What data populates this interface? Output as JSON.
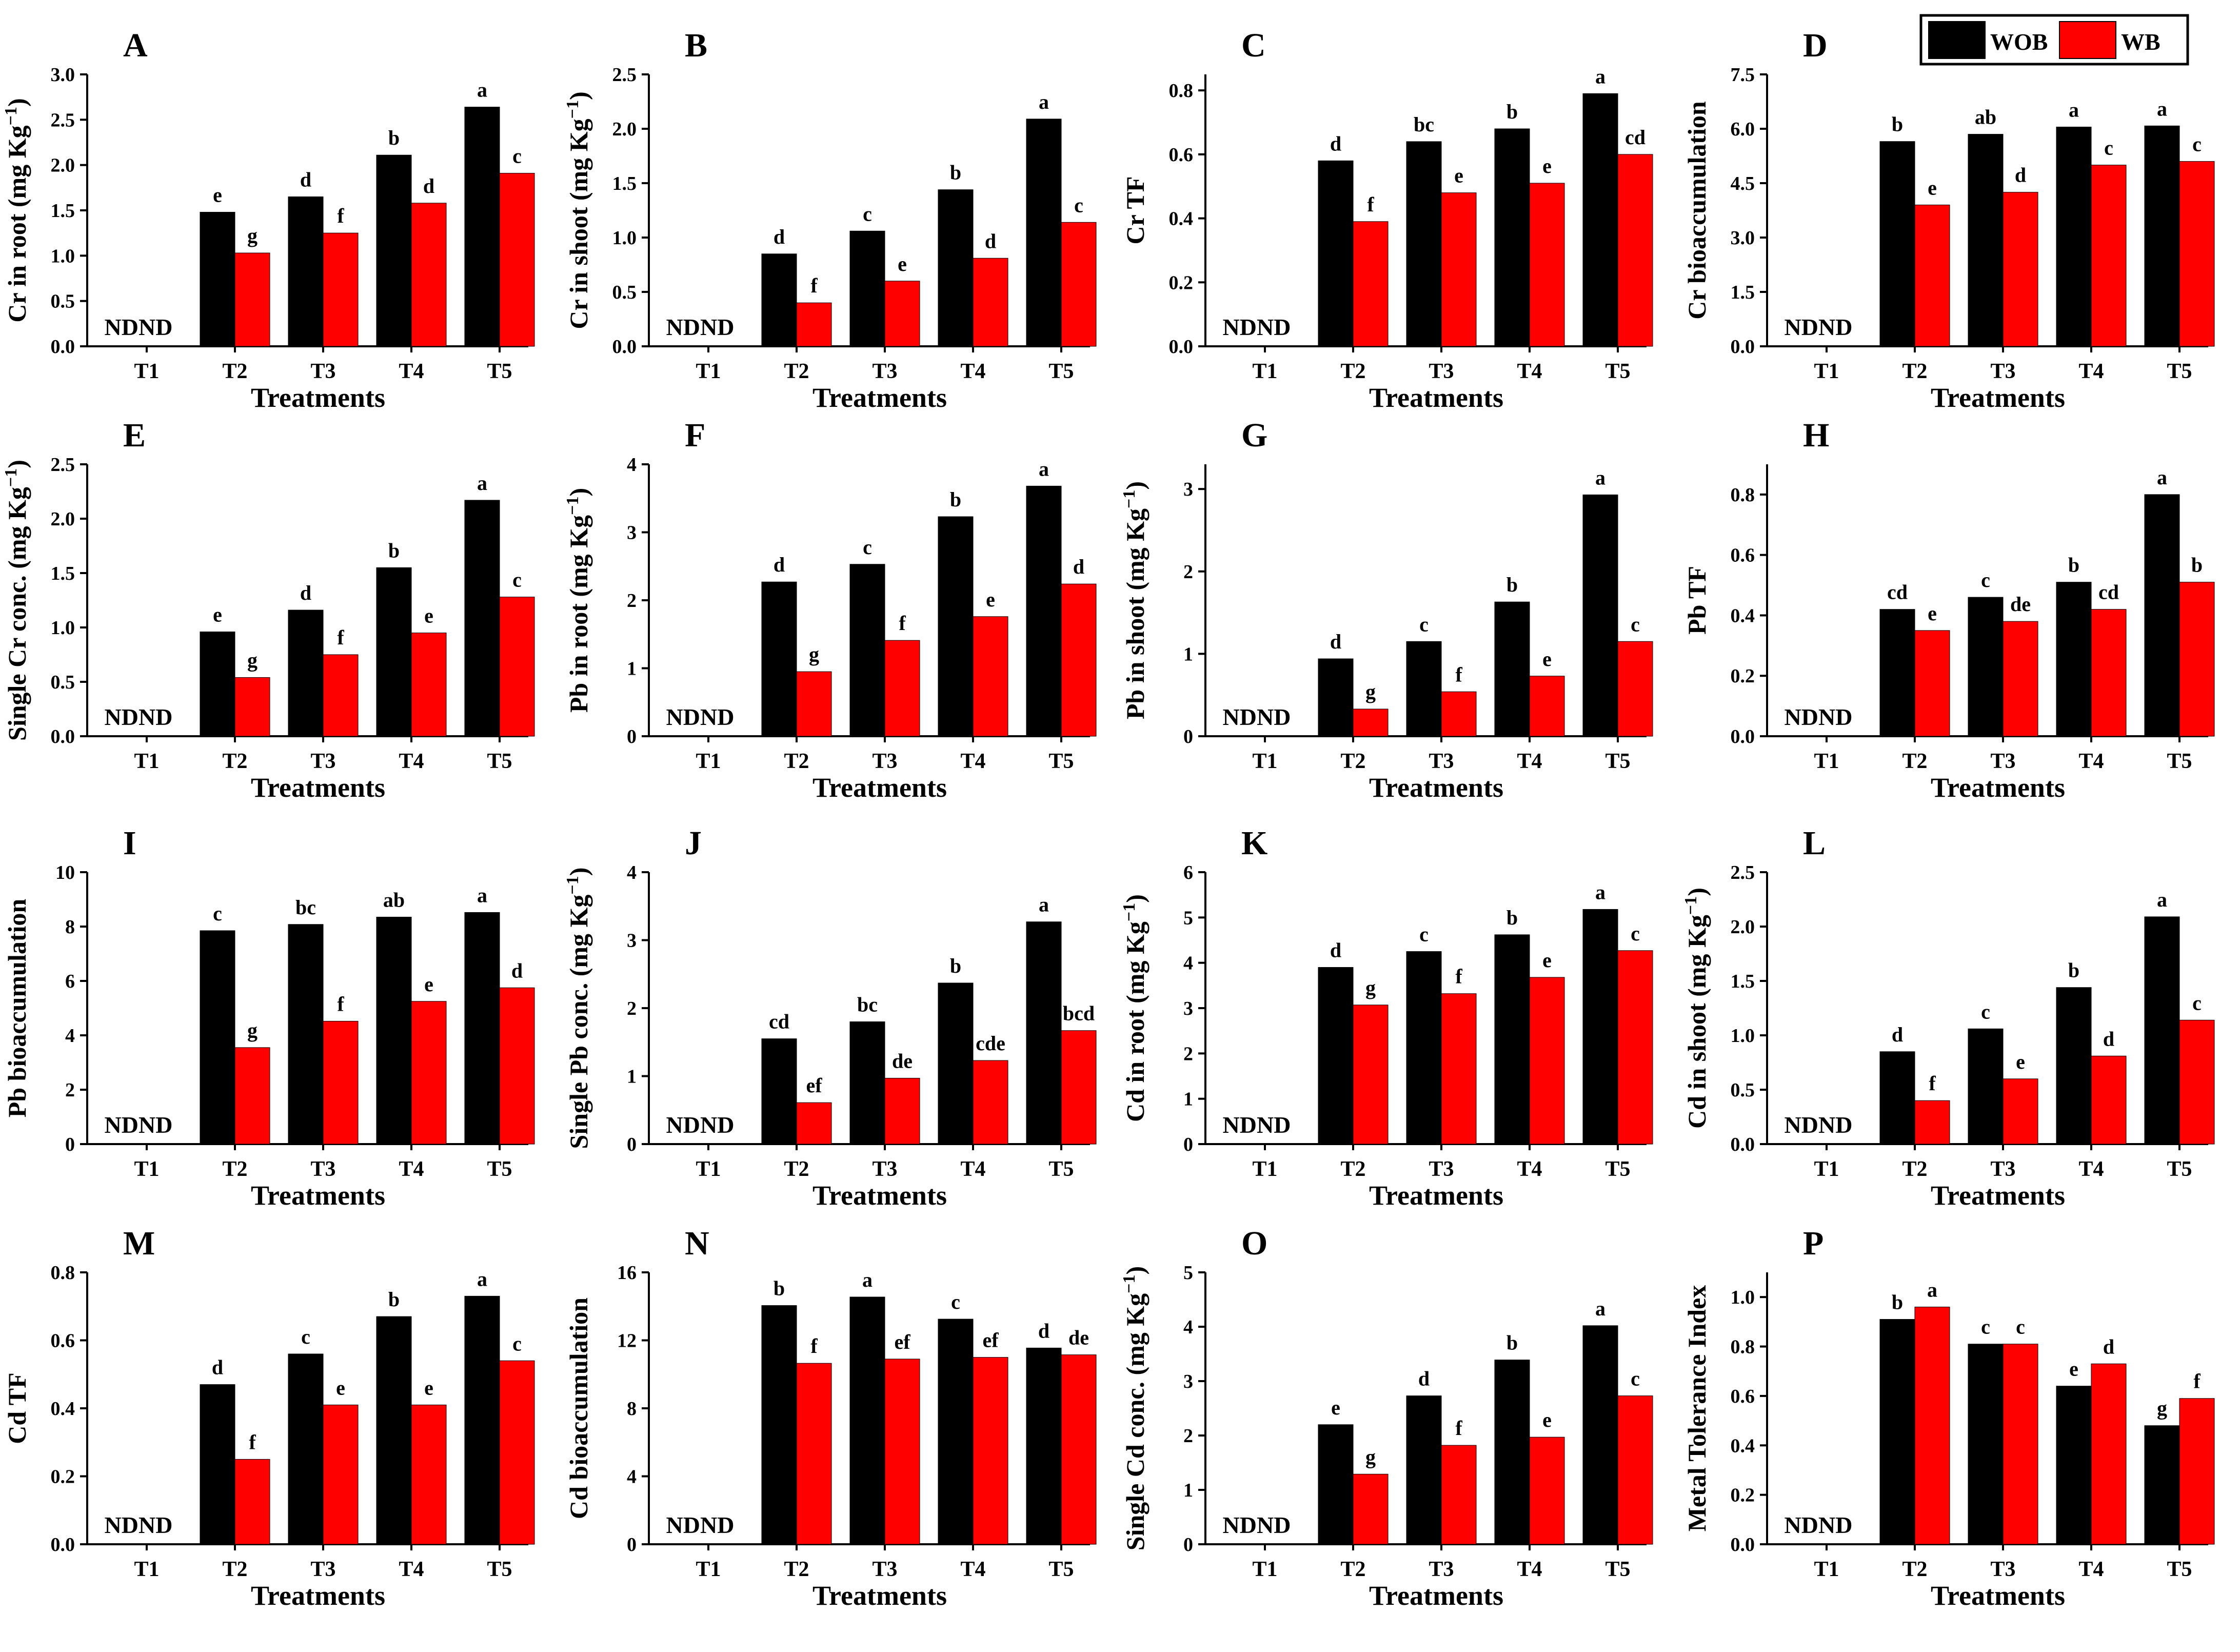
{
  "figure": {
    "xlabel": "Treatments",
    "categories": [
      "T1",
      "T2",
      "T3",
      "T4",
      "T5"
    ],
    "nd_label": "ND",
    "legend": [
      {
        "name": "WOB",
        "color": "#000000"
      },
      {
        "name": "WB",
        "color": "#ff0000"
      }
    ]
  },
  "chart_data": [
    {
      "letter": "A",
      "type": "bar",
      "ylabel": "Cr in root (mg Kg",
      "unit": true,
      "ylim": [
        0,
        3.0
      ],
      "ticks": [
        "0.0",
        "0.5",
        "1.0",
        "1.5",
        "2.0",
        "2.5",
        "3.0"
      ],
      "series": [
        {
          "name": "WOB",
          "values": [
            0,
            1.48,
            1.65,
            2.11,
            2.64
          ],
          "labels": [
            "",
            "e",
            "d",
            "b",
            "a"
          ]
        },
        {
          "name": "WB",
          "values": [
            0,
            1.03,
            1.25,
            1.58,
            1.91
          ],
          "labels": [
            "",
            "g",
            "f",
            "d",
            "c"
          ]
        }
      ]
    },
    {
      "letter": "B",
      "type": "bar",
      "ylabel": "Cr in shoot (mg Kg",
      "unit": true,
      "ylim": [
        0,
        2.5
      ],
      "ticks": [
        "0.0",
        "0.5",
        "1.0",
        "1.5",
        "2.0",
        "2.5"
      ],
      "series": [
        {
          "name": "WOB",
          "values": [
            0,
            0.85,
            1.06,
            1.44,
            2.09
          ],
          "labels": [
            "",
            "d",
            "c",
            "b",
            "a"
          ]
        },
        {
          "name": "WB",
          "values": [
            0,
            0.4,
            0.6,
            0.81,
            1.14
          ],
          "labels": [
            "",
            "f",
            "e",
            "d",
            "c"
          ]
        }
      ]
    },
    {
      "letter": "C",
      "type": "bar",
      "ylabel": "Cr TF",
      "unit": false,
      "ylim": [
        0,
        0.85
      ],
      "ticks": [
        "0.0",
        "0.2",
        "0.4",
        "0.6",
        "0.8"
      ],
      "series": [
        {
          "name": "WOB",
          "values": [
            0,
            0.58,
            0.64,
            0.68,
            0.79
          ],
          "labels": [
            "",
            "d",
            "bc",
            "b",
            "a"
          ]
        },
        {
          "name": "WB",
          "values": [
            0,
            0.39,
            0.48,
            0.51,
            0.6
          ],
          "labels": [
            "",
            "f",
            "e",
            "e",
            "cd"
          ]
        }
      ]
    },
    {
      "letter": "D",
      "type": "bar",
      "ylabel": "Cr bioaccumulation",
      "unit": false,
      "ylim": [
        0,
        7.5
      ],
      "ticks": [
        "0.0",
        "1.5",
        "3.0",
        "4.5",
        "6.0",
        "7.5"
      ],
      "series": [
        {
          "name": "WOB",
          "values": [
            0,
            5.65,
            5.85,
            6.05,
            6.08
          ],
          "labels": [
            "",
            "b",
            "ab",
            "a",
            "a"
          ]
        },
        {
          "name": "WB",
          "values": [
            0,
            3.9,
            4.25,
            5.0,
            5.1
          ],
          "labels": [
            "",
            "e",
            "d",
            "c",
            "c"
          ]
        }
      ]
    },
    {
      "letter": "E",
      "type": "bar",
      "ylabel": "Single Cr conc. (mg Kg",
      "unit": true,
      "ylim": [
        0,
        2.5
      ],
      "ticks": [
        "0.0",
        "0.5",
        "1.0",
        "1.5",
        "2.0",
        "2.5"
      ],
      "series": [
        {
          "name": "WOB",
          "values": [
            0,
            0.96,
            1.16,
            1.55,
            2.17
          ],
          "labels": [
            "",
            "e",
            "d",
            "b",
            "a"
          ]
        },
        {
          "name": "WB",
          "values": [
            0,
            0.54,
            0.75,
            0.95,
            1.28
          ],
          "labels": [
            "",
            "g",
            "f",
            "e",
            "c"
          ]
        }
      ]
    },
    {
      "letter": "F",
      "type": "bar",
      "ylabel": "Pb in root (mg Kg",
      "unit": true,
      "ylim": [
        0,
        4
      ],
      "ticks": [
        "0",
        "1",
        "2",
        "3",
        "4"
      ],
      "series": [
        {
          "name": "WOB",
          "values": [
            0,
            2.27,
            2.53,
            3.23,
            3.68
          ],
          "labels": [
            "",
            "d",
            "c",
            "b",
            "a"
          ]
        },
        {
          "name": "WB",
          "values": [
            0,
            0.95,
            1.41,
            1.76,
            2.24
          ],
          "labels": [
            "",
            "g",
            "f",
            "e",
            "d"
          ]
        }
      ]
    },
    {
      "letter": "G",
      "type": "bar",
      "ylabel": "Pb in shoot (mg Kg",
      "unit": true,
      "ylim": [
        0,
        3.3
      ],
      "ticks": [
        "0",
        "1",
        "2",
        "3"
      ],
      "series": [
        {
          "name": "WOB",
          "values": [
            0,
            0.94,
            1.15,
            1.63,
            2.93
          ],
          "labels": [
            "",
            "d",
            "c",
            "b",
            "a"
          ]
        },
        {
          "name": "WB",
          "values": [
            0,
            0.33,
            0.54,
            0.73,
            1.15
          ],
          "labels": [
            "",
            "g",
            "f",
            "e",
            "c"
          ]
        }
      ]
    },
    {
      "letter": "H",
      "type": "bar",
      "ylabel": "Pb TF",
      "unit": false,
      "ylim": [
        0,
        0.9
      ],
      "ticks": [
        "0.0",
        "0.2",
        "0.4",
        "0.6",
        "0.8"
      ],
      "series": [
        {
          "name": "WOB",
          "values": [
            0,
            0.42,
            0.46,
            0.51,
            0.8
          ],
          "labels": [
            "",
            "cd",
            "c",
            "b",
            "a"
          ]
        },
        {
          "name": "WB",
          "values": [
            0,
            0.35,
            0.38,
            0.42,
            0.51
          ],
          "labels": [
            "",
            "e",
            "de",
            "cd",
            "b"
          ]
        }
      ]
    },
    {
      "letter": "I",
      "type": "bar",
      "ylabel": "Pb bioaccumulation",
      "unit": false,
      "ylim": [
        0,
        10
      ],
      "ticks": [
        "0",
        "2",
        "4",
        "6",
        "8",
        "10"
      ],
      "series": [
        {
          "name": "WOB",
          "values": [
            0,
            7.85,
            8.08,
            8.35,
            8.52
          ],
          "labels": [
            "",
            "c",
            "bc",
            "ab",
            "a"
          ]
        },
        {
          "name": "WB",
          "values": [
            0,
            3.55,
            4.52,
            5.25,
            5.75
          ],
          "labels": [
            "",
            "g",
            "f",
            "e",
            "d"
          ]
        }
      ]
    },
    {
      "letter": "J",
      "type": "bar",
      "ylabel": "Single Pb conc. (mg Kg",
      "unit": true,
      "ylim": [
        0,
        4
      ],
      "ticks": [
        "0",
        "1",
        "2",
        "3",
        "4"
      ],
      "series": [
        {
          "name": "WOB",
          "values": [
            0,
            1.55,
            1.8,
            2.37,
            3.27
          ],
          "labels": [
            "",
            "cd",
            "bc",
            "b",
            "a"
          ]
        },
        {
          "name": "WB",
          "values": [
            0,
            0.61,
            0.97,
            1.23,
            1.67
          ],
          "labels": [
            "",
            "ef",
            "de",
            "cde",
            "bcd"
          ]
        }
      ]
    },
    {
      "letter": "K",
      "type": "bar",
      "ylabel": "Cd in root (mg Kg",
      "unit": true,
      "ylim": [
        0,
        6
      ],
      "ticks": [
        "0",
        "1",
        "2",
        "3",
        "4",
        "5",
        "6"
      ],
      "series": [
        {
          "name": "WOB",
          "values": [
            0,
            3.9,
            4.25,
            4.62,
            5.18
          ],
          "labels": [
            "",
            "d",
            "c",
            "b",
            "a"
          ]
        },
        {
          "name": "WB",
          "values": [
            0,
            3.07,
            3.32,
            3.68,
            4.27
          ],
          "labels": [
            "",
            "g",
            "f",
            "e",
            "c"
          ]
        }
      ]
    },
    {
      "letter": "L",
      "type": "bar",
      "ylabel": "Cd in shoot (mg Kg",
      "unit": true,
      "ylim": [
        0,
        2.5
      ],
      "ticks": [
        "0.0",
        "0.5",
        "1.0",
        "1.5",
        "2.0",
        "2.5"
      ],
      "series": [
        {
          "name": "WOB",
          "values": [
            0,
            0.85,
            1.06,
            1.44,
            2.09
          ],
          "labels": [
            "",
            "d",
            "c",
            "b",
            "a"
          ]
        },
        {
          "name": "WB",
          "values": [
            0,
            0.4,
            0.6,
            0.81,
            1.14
          ],
          "labels": [
            "",
            "f",
            "e",
            "d",
            "c"
          ]
        }
      ]
    },
    {
      "letter": "M",
      "type": "bar",
      "ylabel": "Cd TF",
      "unit": false,
      "ylim": [
        0,
        0.8
      ],
      "ticks": [
        "0.0",
        "0.2",
        "0.4",
        "0.6",
        "0.8"
      ],
      "series": [
        {
          "name": "WOB",
          "values": [
            0,
            0.47,
            0.56,
            0.67,
            0.73
          ],
          "labels": [
            "",
            "d",
            "c",
            "b",
            "a"
          ]
        },
        {
          "name": "WB",
          "values": [
            0,
            0.25,
            0.41,
            0.41,
            0.54
          ],
          "labels": [
            "",
            "f",
            "e",
            "e",
            "c"
          ]
        }
      ]
    },
    {
      "letter": "N",
      "type": "bar",
      "ylabel": "Cd bioaccumulation",
      "unit": false,
      "ylim": [
        0,
        16
      ],
      "ticks": [
        "0",
        "4",
        "8",
        "12",
        "16"
      ],
      "series": [
        {
          "name": "WOB",
          "values": [
            0,
            14.05,
            14.55,
            13.25,
            11.55
          ],
          "labels": [
            "",
            "b",
            "a",
            "c",
            "d"
          ]
        },
        {
          "name": "WB",
          "values": [
            0,
            10.65,
            10.9,
            11.0,
            11.15
          ],
          "labels": [
            "",
            "f",
            "ef",
            "ef",
            "de"
          ]
        }
      ]
    },
    {
      "letter": "O",
      "type": "bar",
      "ylabel": "Single Cd conc. (mg Kg",
      "unit": true,
      "ylim": [
        0,
        5
      ],
      "ticks": [
        "0",
        "1",
        "2",
        "3",
        "4",
        "5"
      ],
      "series": [
        {
          "name": "WOB",
          "values": [
            0,
            2.2,
            2.73,
            3.39,
            4.02
          ],
          "labels": [
            "",
            "e",
            "d",
            "b",
            "a"
          ]
        },
        {
          "name": "WB",
          "values": [
            0,
            1.29,
            1.82,
            1.97,
            2.73
          ],
          "labels": [
            "",
            "g",
            "f",
            "e",
            "c"
          ]
        }
      ]
    },
    {
      "letter": "P",
      "type": "bar",
      "ylabel": "Metal Tolerance Index",
      "unit": false,
      "ylim": [
        0,
        1.1
      ],
      "ticks": [
        "0.0",
        "0.2",
        "0.4",
        "0.6",
        "0.8",
        "1.0"
      ],
      "series": [
        {
          "name": "WOB",
          "values": [
            0,
            0.91,
            0.81,
            0.64,
            0.48
          ],
          "labels": [
            "",
            "b",
            "c",
            "e",
            "g"
          ]
        },
        {
          "name": "WB",
          "values": [
            0,
            0.96,
            0.81,
            0.73,
            0.59
          ],
          "labels": [
            "",
            "a",
            "c",
            "d",
            "f"
          ]
        }
      ]
    }
  ]
}
